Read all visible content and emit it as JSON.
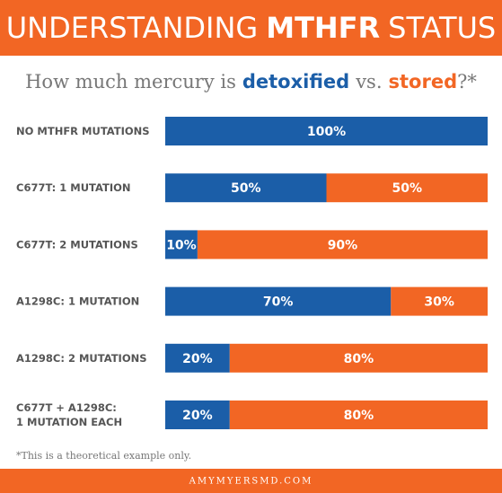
{
  "chart_data": {
    "type": "stacked-bar-horizontal",
    "title": [
      "UNDERSTANDING",
      "MTHFR",
      "STATUS"
    ],
    "subtitle": [
      "How much mercury is",
      "vs.",
      "?*"
    ],
    "categories": [
      "NO MTHFR MUTATIONS",
      "C677T: 1 MUTATION",
      "C677T: 2 MUTATIONS",
      "A1298C: 1 MUTATION",
      "A1298C: 2 MUTATIONS",
      "C677T + A1298C:\n1 MUTATION EACH"
    ],
    "series": [
      {
        "name": "detoxified",
        "color": "#1b5ea8",
        "values": [
          100,
          50,
          10,
          70,
          20,
          20
        ],
        "value_labels": [
          "100%",
          "50%",
          "10%",
          "70%",
          "20%",
          "20%"
        ]
      },
      {
        "name": "stored",
        "color": "#f26624",
        "values": [
          0,
          50,
          90,
          30,
          80,
          80
        ],
        "value_labels": [
          null,
          "50%",
          "90%",
          "30%",
          "80%",
          "80%"
        ]
      }
    ],
    "xlim": [
      0,
      100
    ],
    "footnote": "*This is a theoretical example only.",
    "footer": "AMYMYERSMD.COM"
  }
}
